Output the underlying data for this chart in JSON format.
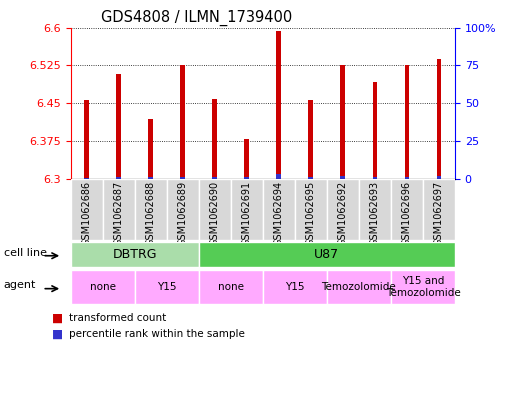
{
  "title": "GDS4808 / ILMN_1739400",
  "samples": [
    "GSM1062686",
    "GSM1062687",
    "GSM1062688",
    "GSM1062689",
    "GSM1062690",
    "GSM1062691",
    "GSM1062694",
    "GSM1062695",
    "GSM1062692",
    "GSM1062693",
    "GSM1062696",
    "GSM1062697"
  ],
  "red_values": [
    6.457,
    6.508,
    6.418,
    6.525,
    6.458,
    6.378,
    6.593,
    6.456,
    6.525,
    6.492,
    6.525,
    6.537
  ],
  "blue_pct": [
    3,
    5,
    5,
    6,
    5,
    5,
    12,
    6,
    7,
    5,
    5,
    7
  ],
  "ymin": 6.3,
  "ymax": 6.6,
  "yticks": [
    6.3,
    6.375,
    6.45,
    6.525,
    6.6
  ],
  "y2ticks": [
    0,
    25,
    50,
    75,
    100
  ],
  "y2labels": [
    "0",
    "25",
    "50",
    "75",
    "100%"
  ],
  "bar_color_red": "#cc0000",
  "bar_color_blue": "#3333cc",
  "cell_line_groups": [
    {
      "name": "DBTRG",
      "start": 0,
      "end": 4,
      "color": "#aaddaa"
    },
    {
      "name": "U87",
      "start": 4,
      "end": 12,
      "color": "#55cc55"
    }
  ],
  "agent_groups": [
    {
      "name": "none",
      "start": 0,
      "end": 2,
      "color": "#ffaaff"
    },
    {
      "name": "Y15",
      "start": 2,
      "end": 4,
      "color": "#ffaaff"
    },
    {
      "name": "none",
      "start": 4,
      "end": 6,
      "color": "#ffaaff"
    },
    {
      "name": "Y15",
      "start": 6,
      "end": 8,
      "color": "#ffaaff"
    },
    {
      "name": "Temozolomide",
      "start": 8,
      "end": 10,
      "color": "#ffaaff"
    },
    {
      "name": "Y15 and\nTemozolomide",
      "start": 10,
      "end": 12,
      "color": "#ffaaff"
    }
  ],
  "legend_red": "transformed count",
  "legend_blue": "percentile rank within the sample",
  "bar_width": 0.15,
  "bg_color": "#ffffff",
  "plot_bg": "#ffffff",
  "label_bg": "#d8d8d8",
  "cell_line_label": "cell line",
  "agent_label": "agent"
}
